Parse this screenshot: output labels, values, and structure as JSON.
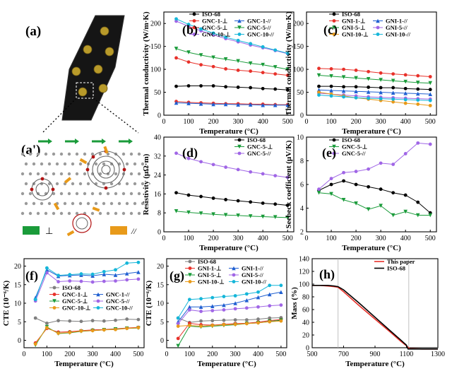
{
  "panels": {
    "a": "(a)",
    "a_prime": "(a')",
    "b": "(b)",
    "c": "(c)",
    "d": "(d)",
    "e": "(e)",
    "f": "(f)",
    "g": "(g)",
    "h": "(h)"
  },
  "schematic_legend": {
    "perpendicular": "⊥",
    "parallel": "//"
  },
  "colors": {
    "black": "#000000",
    "red": "#e8312a",
    "blue": "#1f5fd1",
    "green": "#1a9b3a",
    "orange": "#e89a1a",
    "purple": "#a066e6",
    "cyan": "#15b6d9",
    "gray": "#7f7f7f"
  },
  "chart_data": [
    {
      "id": "b",
      "type": "line",
      "xlabel": "Temperature (°C)",
      "ylabel": "Thermal conductivity (W/m·K)",
      "xlim": [
        0,
        525
      ],
      "ylim": [
        0,
        225
      ],
      "xticks": [
        0,
        100,
        200,
        300,
        400,
        500
      ],
      "yticks": [
        0,
        50,
        100,
        150,
        200
      ],
      "x": [
        50,
        100,
        150,
        200,
        250,
        300,
        350,
        400,
        450,
        500
      ],
      "legend_columns": 2,
      "series": [
        {
          "name": "ISO-68",
          "color": "#000000",
          "marker": "circle",
          "values": [
            63,
            64,
            64,
            64,
            62,
            61,
            60,
            58,
            57,
            55
          ]
        },
        {
          "name": "GNC-1-⊥",
          "color": "#e8312a",
          "marker": "circle",
          "values": [
            30,
            28,
            27,
            26,
            25,
            25,
            24,
            24,
            23,
            23
          ]
        },
        {
          "name": "GNC-1-//",
          "color": "#1f5fd1",
          "marker": "triangle",
          "values": [
            27,
            26,
            25,
            24,
            24,
            23,
            23,
            22,
            22,
            22
          ]
        },
        {
          "name": "GNC-5-⊥",
          "color": "#e8312a",
          "marker": "circle",
          "values": [
            125,
            116,
            110,
            106,
            101,
            98,
            96,
            93,
            90,
            87
          ]
        },
        {
          "name": "GNC-5-//",
          "color": "#1a9b3a",
          "marker": "triangle-down",
          "values": [
            145,
            137,
            131,
            126,
            122,
            118,
            113,
            110,
            105,
            100
          ]
        },
        {
          "name": "GNC-10-⊥",
          "color": "#a066e6",
          "marker": "circle",
          "values": [
            205,
            194,
            184,
            175,
            167,
            160,
            153,
            147,
            141,
            134
          ]
        },
        {
          "name": "GNC-10-//",
          "color": "#15b6d9",
          "marker": "circle",
          "values": [
            210,
            198,
            188,
            179,
            170,
            163,
            156,
            149,
            142,
            135
          ]
        }
      ]
    },
    {
      "id": "c",
      "type": "line",
      "xlabel": "Temperature (°C)",
      "ylabel": "Thermal conductivity (W/m·K)",
      "xlim": [
        0,
        525
      ],
      "ylim": [
        0,
        225
      ],
      "xticks": [
        0,
        100,
        200,
        300,
        400,
        500
      ],
      "yticks": [
        0,
        50,
        100,
        150,
        200
      ],
      "x": [
        50,
        100,
        150,
        200,
        250,
        300,
        350,
        400,
        450,
        500
      ],
      "legend_columns": 2,
      "series": [
        {
          "name": "ISO-68",
          "color": "#000000",
          "marker": "circle",
          "values": [
            63,
            63,
            62,
            62,
            61,
            60,
            60,
            58,
            57,
            56
          ]
        },
        {
          "name": "GNI-1-⊥",
          "color": "#e8312a",
          "marker": "circle",
          "values": [
            102,
            101,
            100,
            98,
            95,
            92,
            90,
            88,
            86,
            84
          ]
        },
        {
          "name": "GNI-1-//",
          "color": "#1f5fd1",
          "marker": "triangle",
          "values": [
            55,
            54,
            53,
            52,
            51,
            50,
            49,
            48,
            47,
            46
          ]
        },
        {
          "name": "GNI-5-⊥",
          "color": "#1a9b3a",
          "marker": "triangle-down",
          "values": [
            87,
            85,
            83,
            81,
            79,
            77,
            75,
            73,
            71,
            70
          ]
        },
        {
          "name": "GNI-5-//",
          "color": "#a066e6",
          "marker": "circle",
          "values": [
            48,
            46,
            44,
            42,
            40,
            39,
            38,
            37,
            36,
            35
          ]
        },
        {
          "name": "GNI-10-⊥",
          "color": "#e89a1a",
          "marker": "circle",
          "values": [
            50,
            46,
            42,
            38,
            35,
            32,
            29,
            26,
            24,
            21
          ]
        },
        {
          "name": "GNI-10-//",
          "color": "#15b6d9",
          "marker": "circle",
          "values": [
            44,
            42,
            40,
            38,
            37,
            36,
            35,
            34,
            33,
            32
          ]
        }
      ]
    },
    {
      "id": "d",
      "type": "line",
      "xlabel": "Temperature (°C)",
      "ylabel": "Resistivity (μΩ·m)",
      "xlim": [
        0,
        525
      ],
      "ylim": [
        0,
        40
      ],
      "xticks": [
        0,
        100,
        200,
        300,
        400,
        500
      ],
      "yticks": [
        0,
        8,
        16,
        24,
        32,
        40
      ],
      "x": [
        50,
        100,
        150,
        200,
        250,
        300,
        350,
        400,
        450,
        500
      ],
      "legend_columns": 1,
      "series": [
        {
          "name": "ISO-68",
          "color": "#000000",
          "marker": "circle",
          "values": [
            16.5,
            15.5,
            14.9,
            14.2,
            13.6,
            13.1,
            12.6,
            12.1,
            11.7,
            11.2
          ]
        },
        {
          "name": "GNC-5-⊥",
          "color": "#1a9b3a",
          "marker": "triangle-down",
          "values": [
            8.7,
            8.2,
            7.8,
            7.4,
            7.1,
            6.9,
            6.6,
            6.4,
            6.2,
            6.0
          ]
        },
        {
          "name": "GNC-5-//",
          "color": "#a066e6",
          "marker": "circle",
          "values": [
            33.2,
            31.0,
            29.6,
            28.4,
            27.3,
            26.3,
            25.3,
            24.5,
            23.7,
            23.0
          ]
        }
      ]
    },
    {
      "id": "e",
      "type": "line",
      "xlabel": "Temperature (°C)",
      "ylabel": "Seebeck coefficient (μV/K)",
      "xlim": [
        0,
        525
      ],
      "ylim": [
        2,
        10
      ],
      "xticks": [
        0,
        100,
        200,
        300,
        400,
        500
      ],
      "yticks": [
        2,
        4,
        6,
        8,
        10
      ],
      "x": [
        50,
        100,
        150,
        200,
        250,
        300,
        350,
        400,
        450,
        500
      ],
      "legend_columns": 1,
      "series": [
        {
          "name": "ISO-68",
          "color": "#000000",
          "marker": "circle",
          "values": [
            5.5,
            6.0,
            6.3,
            6.0,
            5.8,
            5.6,
            5.3,
            5.1,
            4.5,
            3.6
          ]
        },
        {
          "name": "GNC-5-⊥",
          "color": "#1a9b3a",
          "marker": "triangle-down",
          "values": [
            5.3,
            5.2,
            4.7,
            4.4,
            3.9,
            4.2,
            3.4,
            3.7,
            3.4,
            3.4
          ]
        },
        {
          "name": "GNC-5-//",
          "color": "#a066e6",
          "marker": "circle",
          "values": [
            5.6,
            6.5,
            7.0,
            7.1,
            7.3,
            7.8,
            7.7,
            8.6,
            9.5,
            9.4
          ]
        }
      ]
    },
    {
      "id": "f",
      "type": "line",
      "xlabel": "Temperature (°C)",
      "ylabel": "CTE (10⁻⁶/K)",
      "xlim": [
        0,
        525
      ],
      "ylim": [
        -2,
        22
      ],
      "xticks": [
        0,
        100,
        200,
        300,
        400,
        500
      ],
      "yticks": [
        0,
        5,
        10,
        15,
        20
      ],
      "x": [
        50,
        100,
        150,
        200,
        250,
        300,
        350,
        400,
        450,
        500
      ],
      "legend_columns": 2,
      "series": [
        {
          "name": "ISO-68",
          "color": "#7f7f7f",
          "marker": "circle",
          "values": [
            6.0,
            4.6,
            5.3,
            5.2,
            5.1,
            5.3,
            5.2,
            5.4,
            5.7,
            5.6
          ]
        },
        {
          "name": "GNC-1-⊥",
          "color": "#e8312a",
          "marker": "circle",
          "values": [
            -0.7,
            3.2,
            2.2,
            2.3,
            2.6,
            2.8,
            2.9,
            3.1,
            3.3,
            3.5
          ]
        },
        {
          "name": "GNC-1-//",
          "color": "#1f5fd1",
          "marker": "triangle",
          "values": [
            11.5,
            19.0,
            17.3,
            17.5,
            17.6,
            17.4,
            17.8,
            17.6,
            18.0,
            18.4
          ]
        },
        {
          "name": "GNC-5-⊥",
          "color": "#1a9b3a",
          "marker": "triangle-down",
          "values": [
            -1.3,
            3.6,
            1.8,
            2.0,
            2.4,
            2.6,
            2.8,
            3.0,
            3.2,
            3.3
          ]
        },
        {
          "name": "GNC-5-//",
          "color": "#a066e6",
          "marker": "circle",
          "values": [
            10.6,
            18.2,
            15.8,
            16.0,
            15.9,
            15.7,
            15.9,
            16.0,
            16.3,
            16.5
          ]
        },
        {
          "name": "GNC-10-⊥",
          "color": "#e89a1a",
          "marker": "circle",
          "values": [
            -1.0,
            3.4,
            1.9,
            2.1,
            2.5,
            2.6,
            2.8,
            2.9,
            3.2,
            3.4
          ]
        },
        {
          "name": "GNC-10-//",
          "color": "#15b6d9",
          "marker": "circle",
          "values": [
            11.0,
            19.5,
            17.5,
            17.7,
            17.9,
            17.8,
            18.5,
            19.0,
            20.8,
            21.0
          ]
        }
      ]
    },
    {
      "id": "g",
      "type": "line",
      "xlabel": "Temperature (°C)",
      "ylabel": "CTE (10⁻⁶/K)",
      "xlim": [
        0,
        525
      ],
      "ylim": [
        -2,
        22
      ],
      "xticks": [
        0,
        100,
        200,
        300,
        400,
        500
      ],
      "yticks": [
        0,
        5,
        10,
        15,
        20
      ],
      "x": [
        50,
        100,
        150,
        200,
        250,
        300,
        350,
        400,
        450,
        500
      ],
      "legend_columns": 2,
      "series": [
        {
          "name": "ISO-68",
          "color": "#7f7f7f",
          "marker": "circle",
          "values": [
            6.0,
            4.8,
            5.2,
            5.3,
            5.4,
            5.5,
            5.5,
            5.7,
            6.0,
            6.1
          ]
        },
        {
          "name": "GNI-1-⊥",
          "color": "#e8312a",
          "marker": "circle",
          "values": [
            0.5,
            4.6,
            4.2,
            4.1,
            4.3,
            4.5,
            4.6,
            4.9,
            5.3,
            5.6
          ]
        },
        {
          "name": "GNI-1-//",
          "color": "#1f5fd1",
          "marker": "triangle",
          "values": [
            5.0,
            9.0,
            9.0,
            9.2,
            9.5,
            10.0,
            10.8,
            11.6,
            12.4,
            13.0
          ]
        },
        {
          "name": "GNI-5-⊥",
          "color": "#1a9b3a",
          "marker": "triangle-down",
          "values": [
            -1.5,
            3.8,
            3.6,
            3.8,
            4.0,
            4.2,
            4.5,
            4.7,
            5.1,
            5.4
          ]
        },
        {
          "name": "GNI-5-//",
          "color": "#a066e6",
          "marker": "circle",
          "values": [
            4.5,
            8.2,
            7.8,
            8.0,
            8.2,
            8.5,
            8.7,
            9.0,
            9.3,
            9.5
          ]
        },
        {
          "name": "GNI-10-⊥",
          "color": "#e89a1a",
          "marker": "circle",
          "values": [
            3.8,
            4.0,
            3.8,
            4.0,
            4.2,
            4.3,
            4.5,
            4.7,
            5.0,
            5.2
          ]
        },
        {
          "name": "GNI-10-//",
          "color": "#15b6d9",
          "marker": "circle",
          "values": [
            6.0,
            11.0,
            11.2,
            11.5,
            11.8,
            12.0,
            12.5,
            13.0,
            14.8,
            14.8
          ]
        }
      ]
    },
    {
      "id": "h",
      "type": "line",
      "xlabel": "Temperature (°C)",
      "ylabel": "Mass (%)",
      "xlim": [
        500,
        1300
      ],
      "ylim": [
        0,
        140
      ],
      "xticks": [
        500,
        700,
        900,
        1100,
        1300
      ],
      "yticks": [
        0,
        20,
        40,
        60,
        80,
        100,
        120,
        140
      ],
      "legend_columns": 1,
      "markers": false,
      "vlines": [
        665,
        1115
      ],
      "series": [
        {
          "name": "This paper",
          "color": "#e8312a",
          "points": [
            [
              500,
              98
            ],
            [
              550,
              98
            ],
            [
              600,
              97
            ],
            [
              640,
              96
            ],
            [
              665,
              95
            ],
            [
              700,
              88
            ],
            [
              800,
              66
            ],
            [
              900,
              45
            ],
            [
              1000,
              24
            ],
            [
              1060,
              11
            ],
            [
              1100,
              3
            ],
            [
              1120,
              -1.5
            ],
            [
              1200,
              -2
            ],
            [
              1300,
              -2
            ]
          ]
        },
        {
          "name": "ISO-68",
          "color": "#000000",
          "points": [
            [
              500,
              98
            ],
            [
              550,
              98
            ],
            [
              600,
              98
            ],
            [
              640,
              97
            ],
            [
              665,
              96
            ],
            [
              700,
              91
            ],
            [
              800,
              70
            ],
            [
              900,
              48
            ],
            [
              1000,
              26
            ],
            [
              1060,
              13
            ],
            [
              1100,
              4
            ],
            [
              1110,
              -2
            ],
            [
              1200,
              -2
            ],
            [
              1300,
              -2
            ]
          ]
        }
      ]
    }
  ]
}
